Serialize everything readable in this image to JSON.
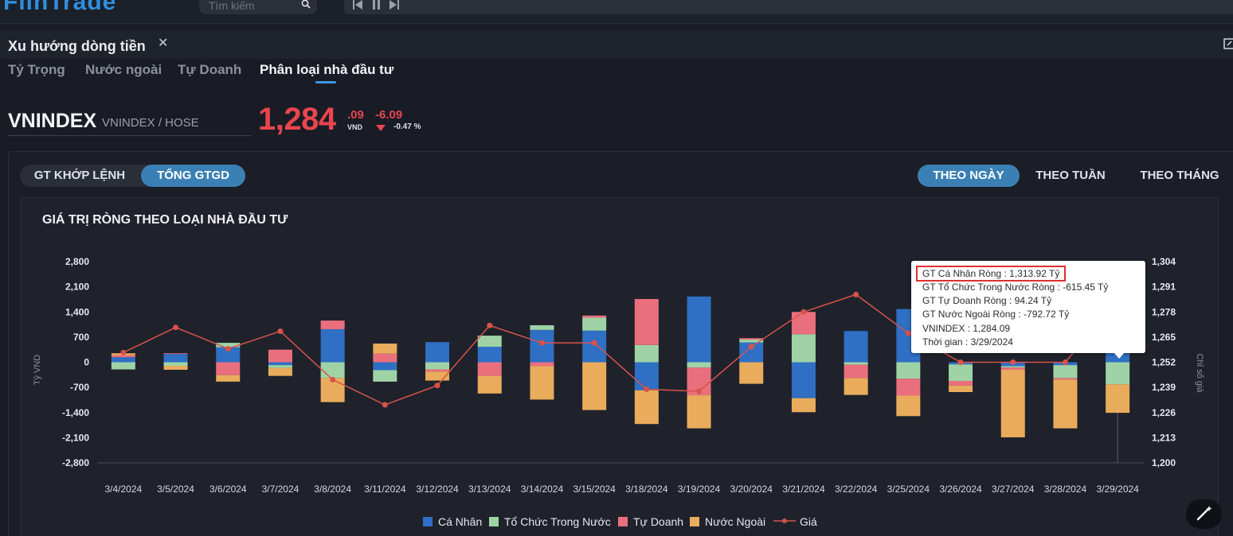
{
  "app": {
    "logo": "FiinTrade"
  },
  "search": {
    "placeholder": "Tìm kiếm"
  },
  "widget": {
    "title": "Xu hướng dòng tiền"
  },
  "tabs": [
    {
      "label": "Tỷ Trọng",
      "active": false
    },
    {
      "label": "Nước ngoài",
      "active": false
    },
    {
      "label": "Tự Doanh",
      "active": false
    },
    {
      "label": "Phân loại nhà đầu tư",
      "active": true
    }
  ],
  "index": {
    "name": "VNINDEX",
    "exchange": "VNINDEX / HOSE",
    "price_int": "1,284",
    "price_dec": ".09",
    "unit": "VND",
    "change": "-6.09",
    "change_pct": "-0.47 %"
  },
  "value_toggle": [
    {
      "label": "GT KHỚP LỆNH",
      "active": false
    },
    {
      "label": "TỔNG GTGD",
      "active": true
    }
  ],
  "period_toggle": [
    {
      "label": "THEO NGÀY",
      "active": true
    },
    {
      "label": "THEO TUẦN",
      "active": false
    },
    {
      "label": "THEO THÁNG",
      "active": false
    }
  ],
  "colors": {
    "ca_nhan": "#2f6fc4",
    "to_chuc": "#9fd3a6",
    "tu_doanh": "#ea6f7d",
    "nuoc_ngoai": "#e9ac5c",
    "gia": "#d9534a"
  },
  "chart_data": {
    "type": "bar",
    "stacked": true,
    "title": "GIÁ TRỊ RÒNG THEO LOẠI NHÀ ĐẦU TƯ",
    "ylabel": "Tỷ VND",
    "y2label": "Chỉ số giá",
    "ylim": [
      -2800,
      2800
    ],
    "yticks": [
      "2,800",
      "2,100",
      "1,400",
      "700",
      "0",
      "-700",
      "-1,400",
      "-2,100",
      "-2,800"
    ],
    "y2lim": [
      1200,
      1304
    ],
    "y2ticks": [
      "1,304",
      "1,291",
      "1,278",
      "1,265",
      "1,252",
      "1,239",
      "1,226",
      "1,213",
      "1,200"
    ],
    "legend_position": "bottom",
    "categories": [
      "3/4/2024",
      "3/5/2024",
      "3/6/2024",
      "3/7/2024",
      "3/8/2024",
      "3/11/2024",
      "3/12/2024",
      "3/13/2024",
      "3/14/2024",
      "3/15/2024",
      "3/18/2024",
      "3/19/2024",
      "3/20/2024",
      "3/21/2024",
      "3/22/2024",
      "3/25/2024",
      "3/26/2024",
      "3/27/2024",
      "3/28/2024",
      "3/29/2024"
    ],
    "series": [
      {
        "name": "Cá Nhân",
        "type": "bar",
        "values": [
          140,
          230,
          420,
          -80,
          920,
          -220,
          560,
          430,
          900,
          880,
          -780,
          1830,
          550,
          -1000,
          870,
          1480,
          -60,
          -110,
          -80,
          1313.92
        ]
      },
      {
        "name": "Tổ Chức Trong Nước",
        "type": "bar",
        "values": [
          -200,
          -100,
          120,
          -80,
          -440,
          -320,
          -200,
          310,
          130,
          360,
          480,
          -150,
          80,
          780,
          -70,
          -460,
          -460,
          -40,
          -360,
          -615.45
        ]
      },
      {
        "name": "Tự Doanh",
        "type": "bar",
        "values": [
          60,
          20,
          -360,
          350,
          240,
          240,
          -60,
          -380,
          -110,
          60,
          1280,
          -770,
          40,
          620,
          -370,
          -470,
          -130,
          -60,
          -40,
          94.24
        ]
      },
      {
        "name": "Nước Ngoài",
        "type": "bar",
        "values": [
          50,
          -110,
          -180,
          -220,
          -670,
          280,
          -250,
          -490,
          -930,
          -1330,
          -940,
          -920,
          -600,
          -390,
          -470,
          -570,
          -180,
          -1880,
          -1360,
          -792.72
        ]
      },
      {
        "name": "Giá",
        "type": "line",
        "values": [
          1257,
          1270,
          1259,
          1268,
          1243,
          1230,
          1240,
          1271,
          1262,
          1262,
          1238,
          1237,
          1260,
          1278,
          1287,
          1267,
          1252,
          1252,
          1252,
          1284.09
        ]
      }
    ]
  },
  "tooltip": {
    "rows": [
      "GT Cá Nhân Ròng  : 1,313.92 Tỷ",
      "GT Tổ Chức Trong Nước Ròng : -615.45 Tỷ",
      "GT Tự Doanh Ròng : 94.24 Tỷ",
      "GT Nước Ngoài Ròng : -792.72 Tỷ",
      "VNINDEX : 1,284.09",
      "Thời gian : 3/29/2024"
    ]
  }
}
